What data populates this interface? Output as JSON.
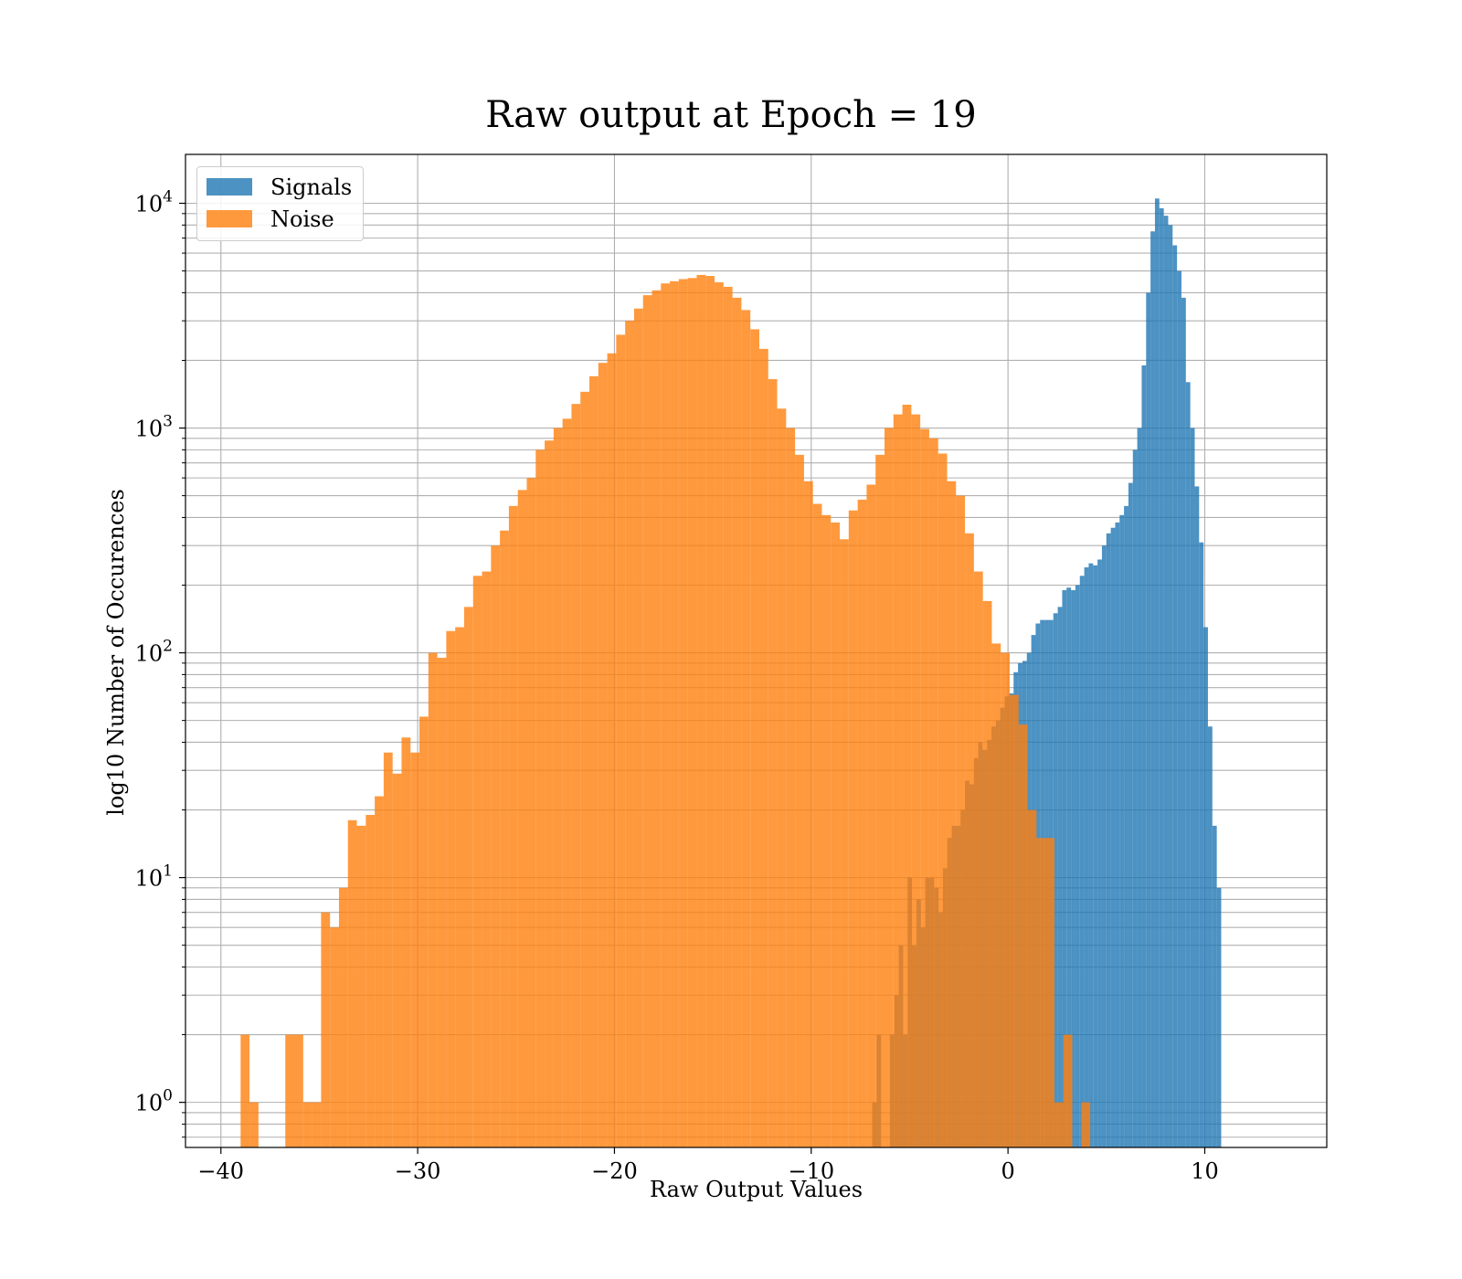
{
  "chart_data": {
    "type": "histogram",
    "title": "Raw output at Epoch = 19",
    "xlabel": "Raw Output Values",
    "ylabel": "log10 Number of Occurences",
    "xlim": [
      -41.8,
      16.2
    ],
    "ylim": [
      0.63,
      16500
    ],
    "y_scale": "log",
    "grid": true,
    "x_ticks": [
      -40,
      -30,
      -20,
      -10,
      0,
      10
    ],
    "x_tick_labels": [
      "−40",
      "−30",
      "−20",
      "−10",
      "0",
      "10"
    ],
    "y_ticks": [
      1,
      10,
      100,
      1000,
      10000
    ],
    "y_tick_labels": [
      {
        "base": "10",
        "exp": "0"
      },
      {
        "base": "10",
        "exp": "1"
      },
      {
        "base": "10",
        "exp": "2"
      },
      {
        "base": "10",
        "exp": "3"
      },
      {
        "base": "10",
        "exp": "4"
      }
    ],
    "legend": {
      "placement": "top-left",
      "entries": [
        "Signals",
        "Noise"
      ]
    },
    "bar_alpha": 0.8,
    "series": [
      {
        "name": "Signals",
        "color": "#1f77b4",
        "bin_start": -6.9,
        "bin_width": 0.2245,
        "counts": [
          1,
          2,
          0,
          0,
          2,
          3,
          5,
          2,
          10,
          5,
          8,
          6,
          10,
          10,
          9,
          7,
          11,
          15,
          17,
          17,
          20,
          27,
          26,
          34,
          40,
          37,
          41,
          47,
          50,
          57,
          64,
          66,
          82,
          90,
          92,
          100,
          120,
          135,
          140,
          140,
          140,
          150,
          160,
          190,
          195,
          190,
          200,
          220,
          240,
          250,
          245,
          260,
          300,
          340,
          360,
          380,
          410,
          450,
          570,
          800,
          1000,
          1900,
          4000,
          7500,
          10500,
          9500,
          8800,
          8000,
          6500,
          5000,
          3800,
          1600,
          1000,
          550,
          310,
          130,
          47,
          17,
          9
        ]
      },
      {
        "name": "Noise",
        "color": "#ff7f0e",
        "bin_start": -39,
        "bin_width": 0.4545,
        "counts": [
          2,
          1,
          0,
          0,
          0,
          2,
          2,
          1,
          1,
          7,
          6,
          9,
          18,
          17,
          19,
          23,
          36,
          29,
          42,
          36,
          52,
          100,
          95,
          125,
          130,
          160,
          220,
          230,
          300,
          350,
          450,
          530,
          600,
          800,
          880,
          1000,
          1100,
          1280,
          1450,
          1700,
          1950,
          2150,
          2600,
          3000,
          3400,
          3900,
          4100,
          4400,
          4500,
          4600,
          4650,
          4800,
          4750,
          4450,
          4250,
          3800,
          3350,
          2750,
          2250,
          1650,
          1220,
          1000,
          760,
          580,
          460,
          410,
          380,
          320,
          430,
          480,
          560,
          760,
          1000,
          1150,
          1270,
          1150,
          990,
          900,
          770,
          580,
          500,
          340,
          230,
          170,
          110,
          100,
          65,
          48,
          20,
          15,
          15,
          1,
          2,
          0,
          1,
          0
        ]
      }
    ]
  }
}
